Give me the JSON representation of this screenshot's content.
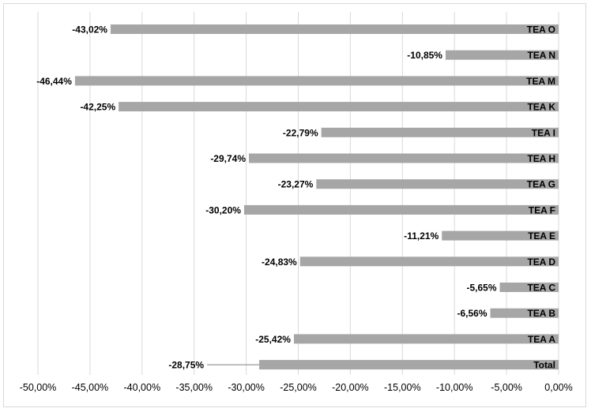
{
  "chart_data": {
    "type": "bar",
    "orientation": "horizontal",
    "categories": [
      "TEA O",
      "TEA N",
      "TEA M",
      "TEA K",
      "TEA I",
      "TEA H",
      "TEA G",
      "TEA F",
      "TEA E",
      "TEA D",
      "TEA C",
      "TEA B",
      "TEA A",
      "Total"
    ],
    "values": [
      -43.02,
      -10.85,
      -46.44,
      -42.25,
      -22.79,
      -29.74,
      -23.27,
      -30.2,
      -11.21,
      -24.83,
      -5.65,
      -6.56,
      -25.42,
      -28.75
    ],
    "value_labels": [
      "-43,02%",
      "-10,85%",
      "-46,44%",
      "-42,25%",
      "-22,79%",
      "-29,74%",
      "-23,27%",
      "-30,20%",
      "-11,21%",
      "-24,83%",
      "-5,65%",
      "-6,56%",
      "-25,42%",
      "-28,75%"
    ],
    "xlim": [
      -50,
      0
    ],
    "xticks": [
      -50,
      -45,
      -40,
      -35,
      -30,
      -25,
      -20,
      -15,
      -10,
      -5,
      0
    ],
    "xtick_labels": [
      "-50,00%",
      "-45,00%",
      "-40,00%",
      "-35,00%",
      "-30,00%",
      "-25,00%",
      "-20,00%",
      "-15,00%",
      "-10,00%",
      "-5,00%",
      "0,00%"
    ],
    "title": "",
    "xlabel": "",
    "ylabel": "",
    "grid": true,
    "bar_color": "#a6a6a6",
    "grid_color": "#d9d9d9"
  }
}
